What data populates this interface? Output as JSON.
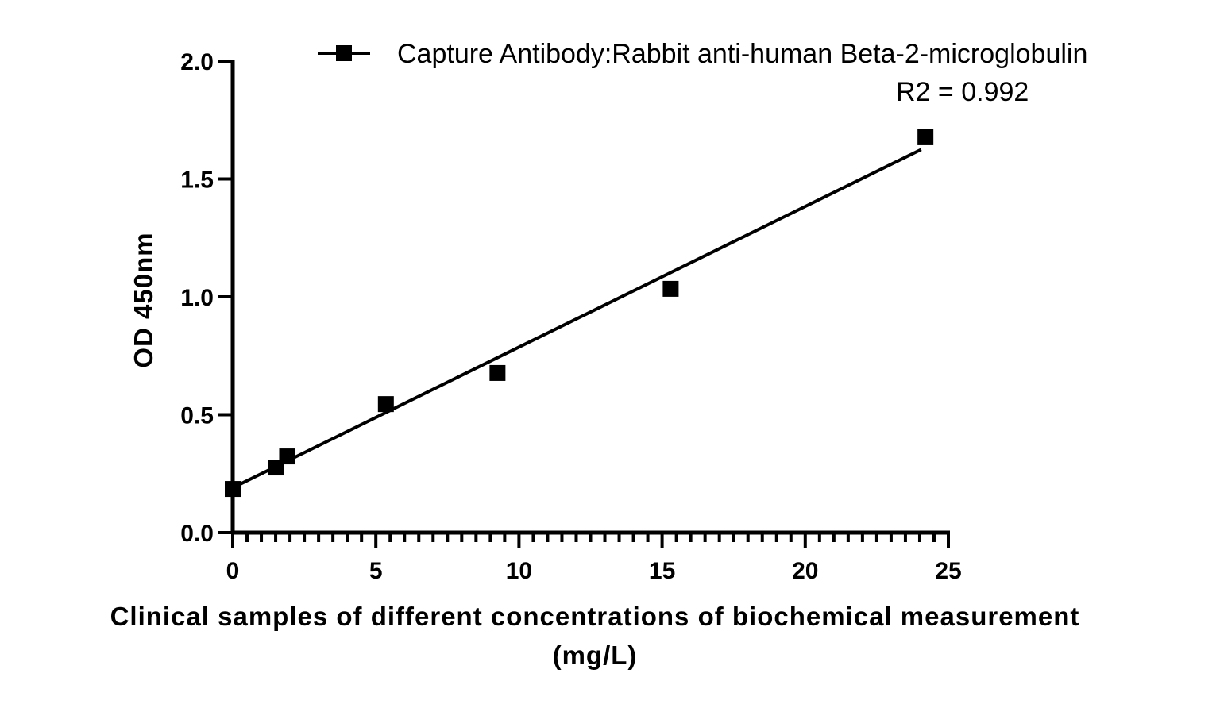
{
  "chart_data": {
    "type": "scatter",
    "title": "",
    "xlabel_line1": "Clinical samples of different concentrations of biochemical measurement",
    "xlabel_line2": "(mg/L)",
    "ylabel": "OD 450nm",
    "xlim": [
      0,
      25
    ],
    "ylim": [
      0,
      2.0
    ],
    "x_ticks": [
      "0",
      "5",
      "10",
      "15",
      "20",
      "25"
    ],
    "y_ticks": [
      "0.0",
      "0.5",
      "1.0",
      "1.5",
      "2.0"
    ],
    "x_minor_step": 0.5,
    "grid": false,
    "legend_position": "top-right",
    "series": [
      {
        "name": "Capture Antibody:Rabbit anti-human Beta-2-microglobulin",
        "marker": "square",
        "color": "#000000",
        "x": [
          0,
          1.5,
          1.9,
          5.35,
          9.25,
          15.3,
          24.2
        ],
        "y": [
          0.185,
          0.276,
          0.323,
          0.545,
          0.677,
          1.034,
          1.677
        ]
      }
    ],
    "fit_line": {
      "x": [
        0,
        24.05
      ],
      "y": [
        0.19,
        1.625
      ]
    },
    "annotation": "R2 = 0.992"
  }
}
